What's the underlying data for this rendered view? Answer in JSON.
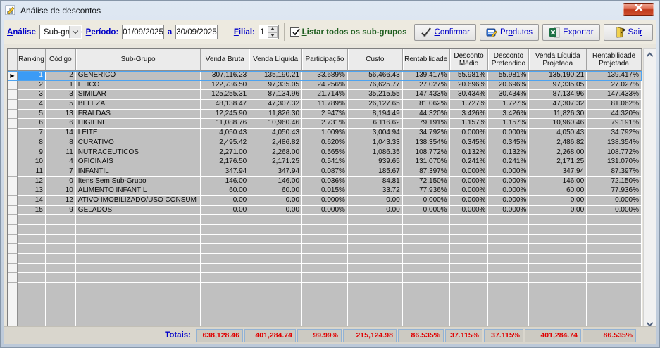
{
  "window": {
    "title": "Análise de descontos"
  },
  "toolbar": {
    "analysis_label": "Análise",
    "analysis_value": "Sub-grupo",
    "period_label": "Período:",
    "period_from": "01/09/2025",
    "period_sep": "a",
    "period_to": "30/09/2025",
    "branch_label": "Filial:",
    "branch_value": "1",
    "list_all_label": "Listar todos os sub-grupos",
    "list_all_checked": true,
    "buttons": {
      "confirm": {
        "label": "Confirmar",
        "icon": "checkmark-icon",
        "underline": 0
      },
      "products": {
        "label": "Produtos",
        "icon": "register-icon",
        "underline": 2
      },
      "export": {
        "label": "Exportar",
        "icon": "excel-icon",
        "underline": -1
      },
      "exit": {
        "label": "Sair",
        "icon": "exit-door-icon",
        "underline": 3
      }
    }
  },
  "grid": {
    "columns": [
      "Ranking",
      "Código",
      "Sub-Grupo",
      "Venda Bruta",
      "Venda Líquida",
      "Participação",
      "Custo",
      "Rentabilidade",
      "Desconto Médio",
      "Desconto Pretendido",
      "Venda Líquida Projetada",
      "Rentabilidade Projetada"
    ],
    "rows": [
      [
        "1",
        "2",
        "GENERICO",
        "307,116.23",
        "135,190.21",
        "33.689%",
        "56,466.43",
        "139.417%",
        "55.981%",
        "55.981%",
        "135,190.21",
        "139.417%"
      ],
      [
        "2",
        "1",
        "ETICO",
        "122,736.50",
        "97,335.05",
        "24.256%",
        "76,625.77",
        "27.027%",
        "20.696%",
        "20.696%",
        "97,335.05",
        "27.027%"
      ],
      [
        "3",
        "3",
        "SIMILAR",
        "125,255.31",
        "87,134.96",
        "21.714%",
        "35,215.55",
        "147.433%",
        "30.434%",
        "30.434%",
        "87,134.96",
        "147.433%"
      ],
      [
        "4",
        "5",
        "BELEZA",
        "48,138.47",
        "47,307.32",
        "11.789%",
        "26,127.65",
        "81.062%",
        "1.727%",
        "1.727%",
        "47,307.32",
        "81.062%"
      ],
      [
        "5",
        "13",
        "FRALDAS",
        "12,245.90",
        "11,826.30",
        "2.947%",
        "8,194.49",
        "44.320%",
        "3.426%",
        "3.426%",
        "11,826.30",
        "44.320%"
      ],
      [
        "6",
        "6",
        "HIGIENE",
        "11,088.76",
        "10,960.46",
        "2.731%",
        "6,116.62",
        "79.191%",
        "1.157%",
        "1.157%",
        "10,960.46",
        "79.191%"
      ],
      [
        "7",
        "14",
        "LEITE",
        "4,050.43",
        "4,050.43",
        "1.009%",
        "3,004.94",
        "34.792%",
        "0.000%",
        "0.000%",
        "4,050.43",
        "34.792%"
      ],
      [
        "8",
        "8",
        "CURATIVO",
        "2,495.42",
        "2,486.82",
        "0.620%",
        "1,043.33",
        "138.354%",
        "0.345%",
        "0.345%",
        "2,486.82",
        "138.354%"
      ],
      [
        "9",
        "11",
        "NUTRACEUTICOS",
        "2,271.00",
        "2,268.00",
        "0.565%",
        "1,086.35",
        "108.772%",
        "0.132%",
        "0.132%",
        "2,268.00",
        "108.772%"
      ],
      [
        "10",
        "4",
        "OFICINAIS",
        "2,176.50",
        "2,171.25",
        "0.541%",
        "939.65",
        "131.070%",
        "0.241%",
        "0.241%",
        "2,171.25",
        "131.070%"
      ],
      [
        "11",
        "7",
        "INFANTIL",
        "347.94",
        "347.94",
        "0.087%",
        "185.67",
        "87.397%",
        "0.000%",
        "0.000%",
        "347.94",
        "87.397%"
      ],
      [
        "12",
        "0",
        "Itens Sem Sub-Grupo",
        "146.00",
        "146.00",
        "0.036%",
        "84.81",
        "72.150%",
        "0.000%",
        "0.000%",
        "146.00",
        "72.150%"
      ],
      [
        "13",
        "10",
        "ALIMENTO INFANTIL",
        "60.00",
        "60.00",
        "0.015%",
        "33.72",
        "77.936%",
        "0.000%",
        "0.000%",
        "60.00",
        "77.936%"
      ],
      [
        "14",
        "12",
        "ATIVO IMOBILIZADO/USO CONSUM",
        "0.00",
        "0.00",
        "0.000%",
        "0.00",
        "0.000%",
        "0.000%",
        "0.000%",
        "0.00",
        "0.000%"
      ],
      [
        "15",
        "9",
        "GELADOS",
        "0.00",
        "0.00",
        "0.000%",
        "0.00",
        "0.000%",
        "0.000%",
        "0.000%",
        "0.00",
        "0.000%"
      ]
    ],
    "selected_row_index": 0,
    "empty_row_count": 12,
    "totals_label": "Totais:",
    "totals": [
      "638,128.46",
      "401,284.74",
      "99.99%",
      "215,124.98",
      "86.535%",
      "37.115%",
      "37.115%",
      "401,284.74",
      "86.535%"
    ]
  },
  "colors": {
    "accent_blue": "#0000C8",
    "label_green": "#1F5E1F",
    "total_red": "#E00000",
    "selection_blue": "#3B9BF5"
  }
}
